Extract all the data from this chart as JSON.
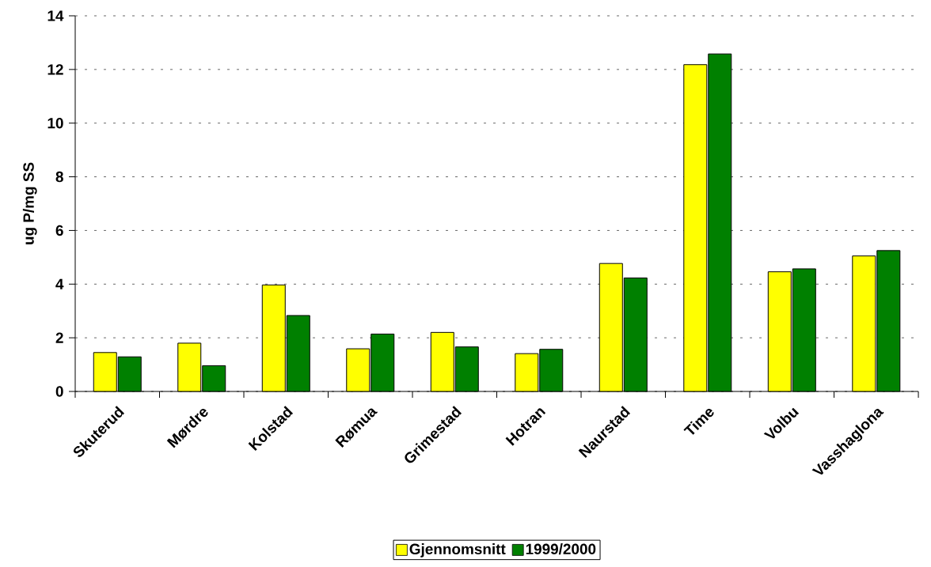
{
  "chart_data": {
    "type": "bar",
    "ylabel": "ug P/mg SS",
    "categories": [
      "Skuterud",
      "Mørdre",
      "Kolstad",
      "Rømua",
      "Grimestad",
      "Hotran",
      "Naurstad",
      "Time",
      "Volbu",
      "Vasshaglona"
    ],
    "series": [
      {
        "name": "Gjennomsnitt",
        "color": "#ffff00",
        "values": [
          1.45,
          1.8,
          3.97,
          1.59,
          2.2,
          1.41,
          4.77,
          12.18,
          4.46,
          5.05
        ]
      },
      {
        "name": "1999/2000",
        "color": "#008000",
        "values": [
          1.29,
          0.96,
          2.83,
          2.14,
          1.66,
          1.57,
          4.23,
          12.58,
          4.57,
          5.25
        ]
      }
    ],
    "ylim": [
      0,
      14
    ],
    "yticks": [
      0,
      2,
      4,
      6,
      8,
      10,
      12,
      14
    ],
    "grid": "y",
    "legend": "bottom"
  }
}
